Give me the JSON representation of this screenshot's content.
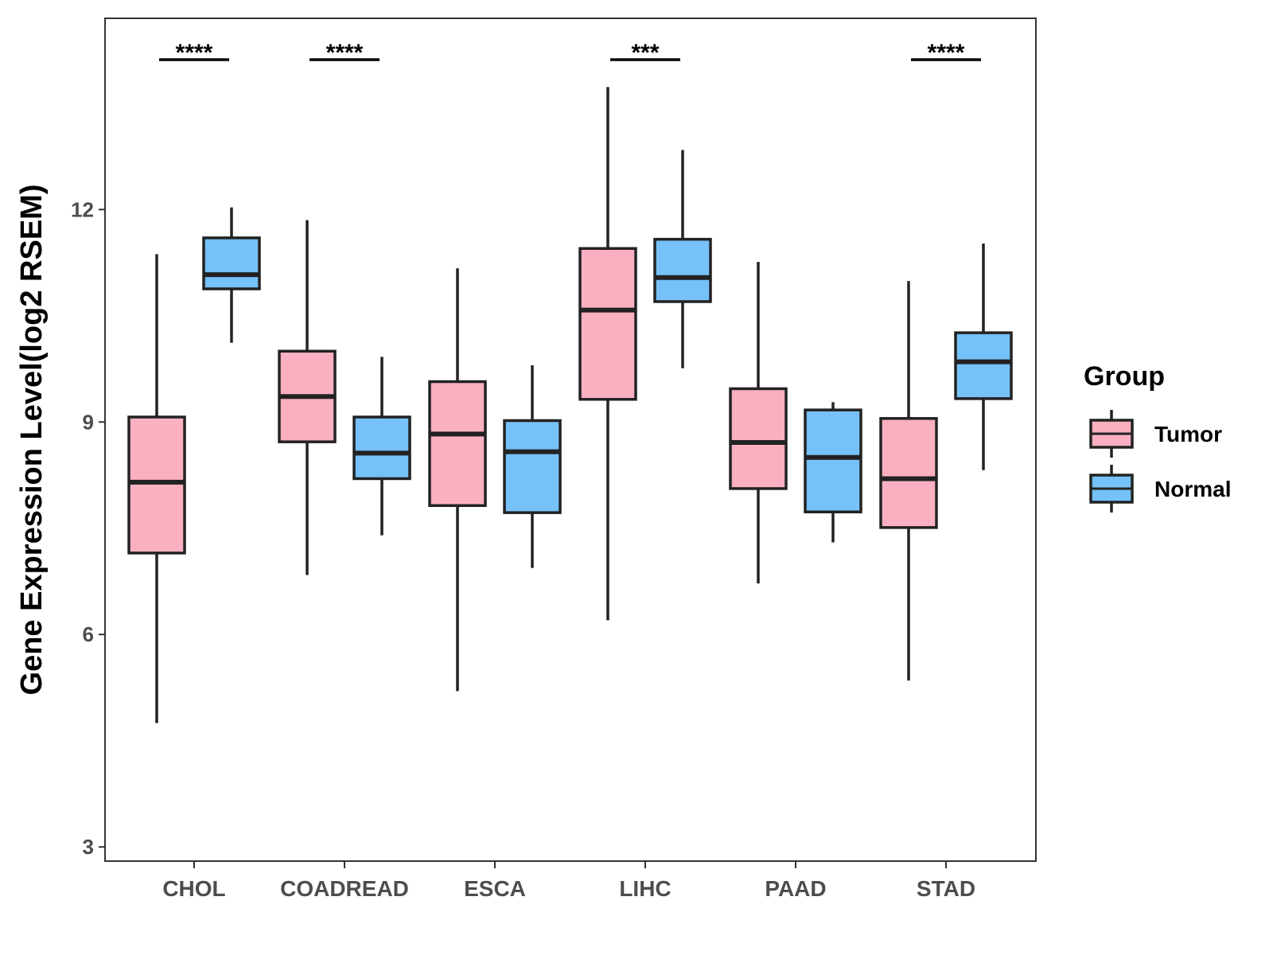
{
  "chart_data": {
    "type": "boxplot",
    "title": "",
    "xlabel": "",
    "ylabel": "Gene Expression Level(log2 RSEM)",
    "yticks": [
      3,
      6,
      9,
      12
    ],
    "ylim": [
      2.8,
      14.7
    ],
    "categories": [
      "CHOL",
      "COADREAD",
      "ESCA",
      "LIHC",
      "PAAD",
      "STAD"
    ],
    "legend": {
      "title": "Group",
      "position": "right",
      "entries": [
        {
          "name": "Tumor",
          "color": "#fbb0c1"
        },
        {
          "name": "Normal",
          "color": "#76c1f7"
        }
      ]
    },
    "series": [
      {
        "name": "Tumor",
        "color": "#fbb0c1",
        "boxes": [
          {
            "category": "CHOL",
            "min": 4.75,
            "q1": 7.15,
            "median": 8.15,
            "q3": 9.07,
            "max": 11.37
          },
          {
            "category": "COADREAD",
            "min": 6.84,
            "q1": 8.72,
            "median": 9.36,
            "q3": 10.0,
            "max": 11.85
          },
          {
            "category": "ESCA",
            "min": 5.2,
            "q1": 7.82,
            "median": 8.83,
            "q3": 9.57,
            "max": 11.17
          },
          {
            "category": "LIHC",
            "min": 6.2,
            "q1": 9.32,
            "median": 10.58,
            "q3": 11.45,
            "max": 13.73
          },
          {
            "category": "PAAD",
            "min": 6.72,
            "q1": 8.06,
            "median": 8.71,
            "q3": 9.47,
            "max": 11.26
          },
          {
            "category": "STAD",
            "min": 5.35,
            "q1": 7.51,
            "median": 8.2,
            "q3": 9.05,
            "max": 10.99
          }
        ]
      },
      {
        "name": "Normal",
        "color": "#76c1f7",
        "boxes": [
          {
            "category": "CHOL",
            "min": 10.12,
            "q1": 10.88,
            "median": 11.08,
            "q3": 11.6,
            "max": 12.03
          },
          {
            "category": "COADREAD",
            "min": 7.4,
            "q1": 8.2,
            "median": 8.56,
            "q3": 9.07,
            "max": 9.92
          },
          {
            "category": "ESCA",
            "min": 6.94,
            "q1": 7.72,
            "median": 8.58,
            "q3": 9.02,
            "max": 9.8
          },
          {
            "category": "LIHC",
            "min": 9.76,
            "q1": 10.7,
            "median": 11.04,
            "q3": 11.58,
            "max": 12.84
          },
          {
            "category": "PAAD",
            "min": 7.3,
            "q1": 7.73,
            "median": 8.5,
            "q3": 9.17,
            "max": 9.28
          },
          {
            "category": "STAD",
            "min": 8.32,
            "q1": 9.33,
            "median": 9.85,
            "q3": 10.26,
            "max": 11.52
          }
        ]
      }
    ],
    "annotations": [
      {
        "category": "CHOL",
        "label": "****"
      },
      {
        "category": "COADREAD",
        "label": "****"
      },
      {
        "category": "LIHC",
        "label": "***"
      },
      {
        "category": "STAD",
        "label": "****"
      }
    ]
  }
}
